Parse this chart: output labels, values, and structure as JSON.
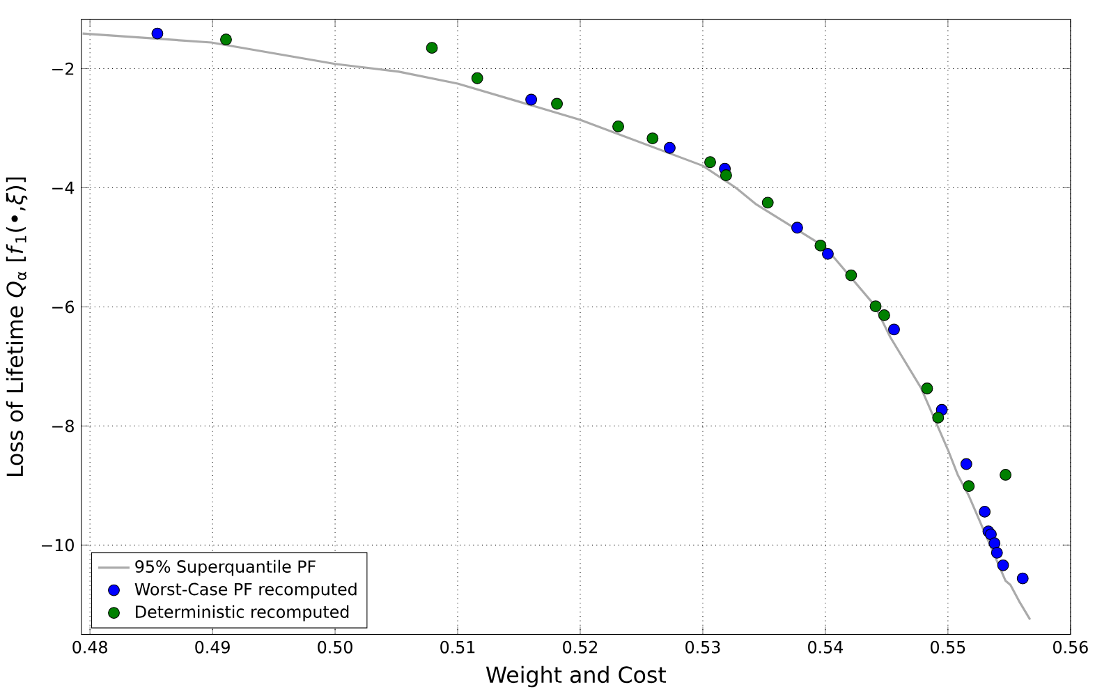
{
  "chart_data": {
    "type": "scatter",
    "xlabel": "Weight and Cost",
    "ylabel": "Loss of Lifetime *Q*$_{α}$ [*f*$_{1}$(•,*ξ*)]",
    "xlim": [
      0.4793,
      0.56
    ],
    "ylim": [
      -11.5,
      -1.17
    ],
    "xticks": [
      {
        "value": 0.48,
        "label": "0.48"
      },
      {
        "value": 0.49,
        "label": "0.49"
      },
      {
        "value": 0.5,
        "label": "0.50"
      },
      {
        "value": 0.51,
        "label": "0.51"
      },
      {
        "value": 0.52,
        "label": "0.52"
      },
      {
        "value": 0.53,
        "label": "0.53"
      },
      {
        "value": 0.54,
        "label": "0.54"
      },
      {
        "value": 0.55,
        "label": "0.55"
      },
      {
        "value": 0.56,
        "label": "0.56"
      }
    ],
    "yticks": [
      {
        "value": -10,
        "label": "−10"
      },
      {
        "value": -8,
        "label": "−8"
      },
      {
        "value": -6,
        "label": "−6"
      },
      {
        "value": -4,
        "label": "−4"
      },
      {
        "value": -2,
        "label": "−2"
      }
    ],
    "grid": true,
    "legend": "bottom left",
    "series": [
      {
        "name": "95% Superquantile PF",
        "type": "line",
        "marker": "none",
        "line_style": "solid",
        "color": "#aaaaaa",
        "x": [
          0.4794,
          0.4899,
          0.5,
          0.5052,
          0.51,
          0.5179,
          0.52,
          0.53,
          0.5327,
          0.5343,
          0.54,
          0.544,
          0.5453,
          0.5478,
          0.55,
          0.5508,
          0.5517,
          0.553,
          0.5547,
          0.5551,
          0.5558,
          0.5567
        ],
        "values": [
          -1.41,
          -1.56,
          -1.92,
          -2.05,
          -2.25,
          -2.73,
          -2.86,
          -3.63,
          -4.0,
          -4.27,
          -5.0,
          -5.97,
          -6.51,
          -7.36,
          -8.4,
          -8.82,
          -9.17,
          -9.79,
          -10.6,
          -10.67,
          -10.94,
          -11.25
        ]
      },
      {
        "name": "Worst-Case PF recomputed",
        "marker": "circle",
        "color": "#0000ff",
        "x": [
          0.4855,
          0.516,
          0.5273,
          0.5318,
          0.5377,
          0.5402,
          0.5456,
          0.5495,
          0.5515,
          0.553,
          0.5533,
          0.5535,
          0.5538,
          0.554,
          0.5545,
          0.5561
        ],
        "values": [
          -1.41,
          -2.52,
          -3.33,
          -3.68,
          -4.67,
          -5.11,
          -6.38,
          -7.73,
          -8.64,
          -9.44,
          -9.77,
          -9.82,
          -9.97,
          -10.13,
          -10.34,
          -10.56
        ]
      },
      {
        "name": "Deterministic recomputed",
        "marker": "circle",
        "color": "#008000",
        "x": [
          0.4911,
          0.5079,
          0.5116,
          0.5181,
          0.5231,
          0.5259,
          0.5306,
          0.5319,
          0.5353,
          0.5396,
          0.5421,
          0.5441,
          0.5448,
          0.5483,
          0.5492,
          0.5517,
          0.5547
        ],
        "values": [
          -1.51,
          -1.65,
          -2.16,
          -2.59,
          -2.97,
          -3.17,
          -3.57,
          -3.79,
          -4.25,
          -4.97,
          -5.47,
          -5.99,
          -6.14,
          -7.37,
          -7.86,
          -9.01,
          -8.82
        ]
      }
    ]
  }
}
